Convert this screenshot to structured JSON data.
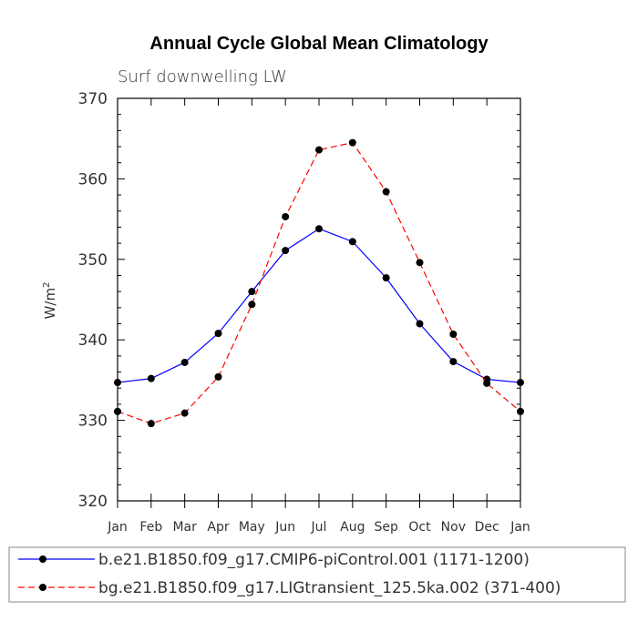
{
  "chart_data": {
    "type": "line",
    "title": "Annual Cycle Global Mean Climatology",
    "subtitle": "Surf downwelling LW",
    "ylabel": "W/m",
    "ylabel_superscript": "2",
    "xlabel": "",
    "categories": [
      "Jan",
      "Feb",
      "Mar",
      "Apr",
      "May",
      "Jun",
      "Jul",
      "Aug",
      "Sep",
      "Oct",
      "Nov",
      "Dec",
      "Jan"
    ],
    "ylim": [
      320,
      370
    ],
    "yticks": [
      320,
      330,
      340,
      350,
      360,
      370
    ],
    "grid": false,
    "legend_position": "bottom",
    "series": [
      {
        "name": "b.e21.B1850.f09_g17.CMIP6-piControl.001 (1171-1200)",
        "color": "#0000ff",
        "line_style": "solid",
        "marker": "filled-circle",
        "values": [
          334.7,
          335.2,
          337.2,
          340.8,
          346.0,
          351.1,
          353.8,
          352.2,
          347.7,
          342.0,
          337.3,
          335.1,
          334.7
        ]
      },
      {
        "name": "bg.e21.B1850.f09_g17.LIGtransient_125.5ka.002 (371-400)",
        "color": "#ff0000",
        "line_style": "dashed",
        "marker": "filled-circle",
        "values": [
          331.1,
          329.6,
          330.9,
          335.4,
          344.4,
          355.3,
          363.6,
          364.5,
          358.4,
          349.6,
          340.7,
          334.6,
          331.1
        ]
      }
    ]
  }
}
